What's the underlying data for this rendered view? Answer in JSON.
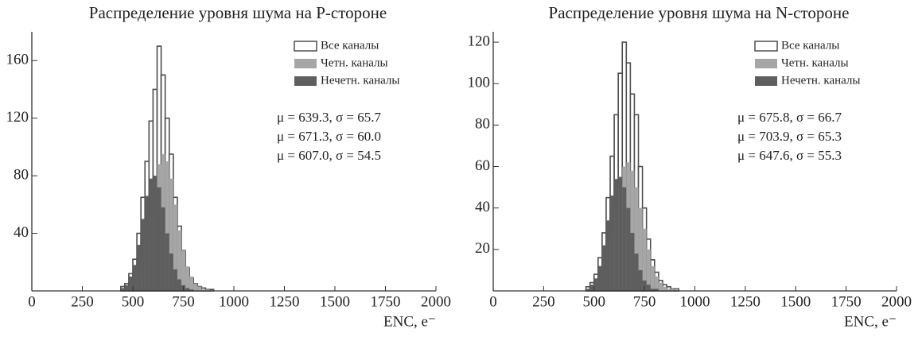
{
  "chart_data": [
    {
      "type": "histogram",
      "title": "Распределение уровня шума на P-стороне",
      "x_label": "ENC, e⁻",
      "bins": [
        440,
        460,
        480,
        500,
        520,
        540,
        560,
        580,
        600,
        620,
        640,
        660,
        680,
        700,
        720,
        740,
        760,
        780,
        800,
        820,
        840,
        860,
        880,
        900
      ],
      "series": [
        {
          "name": "Все каналы",
          "color": "#4d4d4d",
          "filled": false,
          "values": [
            3,
            5,
            12,
            22,
            40,
            65,
            90,
            118,
            140,
            170,
            150,
            120,
            95,
            65,
            45,
            28,
            16,
            9,
            5,
            3,
            2,
            1,
            1
          ]
        },
        {
          "name": "Четн. каналы",
          "color": "#a6a6a6",
          "filled": true,
          "values": [
            0,
            1,
            3,
            6,
            12,
            22,
            35,
            52,
            70,
            88,
            95,
            90,
            78,
            60,
            42,
            28,
            17,
            10,
            5,
            3,
            1,
            1,
            0
          ]
        },
        {
          "name": "Нечетн. каналы",
          "color": "#5e5e5e",
          "filled": true,
          "values": [
            2,
            4,
            10,
            18,
            32,
            50,
            66,
            78,
            80,
            72,
            58,
            40,
            26,
            15,
            8,
            4,
            2,
            1,
            0,
            0,
            0,
            0,
            0
          ]
        }
      ],
      "annotations": [
        "μ = 639.3, σ = 65.7",
        "μ = 671.3, σ = 60.0",
        "μ = 607.0, σ = 54.5"
      ],
      "xlim": [
        0,
        2000
      ],
      "xticks": [
        0,
        250,
        500,
        750,
        1000,
        1250,
        1500,
        1750,
        2000
      ],
      "ylim": [
        0,
        180
      ],
      "yticks": [
        40,
        80,
        120,
        160
      ],
      "legend": "upper right"
    },
    {
      "type": "histogram",
      "title": "Распределение уровня шума на N-стороне",
      "x_label": "ENC, e⁻",
      "bins": [
        460,
        480,
        500,
        520,
        540,
        560,
        580,
        600,
        620,
        640,
        660,
        680,
        700,
        720,
        740,
        760,
        780,
        800,
        820,
        840,
        860,
        880,
        900,
        920
      ],
      "series": [
        {
          "name": "Все каналы",
          "color": "#4d4d4d",
          "filled": false,
          "values": [
            2,
            4,
            8,
            16,
            28,
            45,
            65,
            85,
            105,
            120,
            110,
            95,
            85,
            60,
            40,
            25,
            15,
            9,
            5,
            3,
            2,
            1,
            1
          ]
        },
        {
          "name": "Четн. каналы",
          "color": "#a6a6a6",
          "filled": true,
          "values": [
            0,
            1,
            2,
            5,
            10,
            18,
            28,
            40,
            52,
            60,
            62,
            58,
            50,
            40,
            30,
            20,
            12,
            7,
            4,
            2,
            1,
            1,
            0
          ]
        },
        {
          "name": "Нечетн. каналы",
          "color": "#5e5e5e",
          "filled": true,
          "values": [
            1,
            3,
            6,
            12,
            22,
            34,
            46,
            54,
            55,
            50,
            40,
            28,
            18,
            10,
            5,
            3,
            1,
            1,
            0,
            0,
            0,
            0,
            0
          ]
        }
      ],
      "annotations": [
        "μ = 675.8, σ = 66.7",
        "μ = 703.9, σ = 65.3",
        "μ = 647.6, σ = 55.3"
      ],
      "xlim": [
        0,
        2000
      ],
      "xticks": [
        0,
        250,
        500,
        750,
        1000,
        1250,
        1500,
        1750,
        2000
      ],
      "ylim": [
        0,
        125
      ],
      "yticks": [
        20,
        40,
        60,
        80,
        100,
        120
      ],
      "legend": "upper right"
    }
  ]
}
